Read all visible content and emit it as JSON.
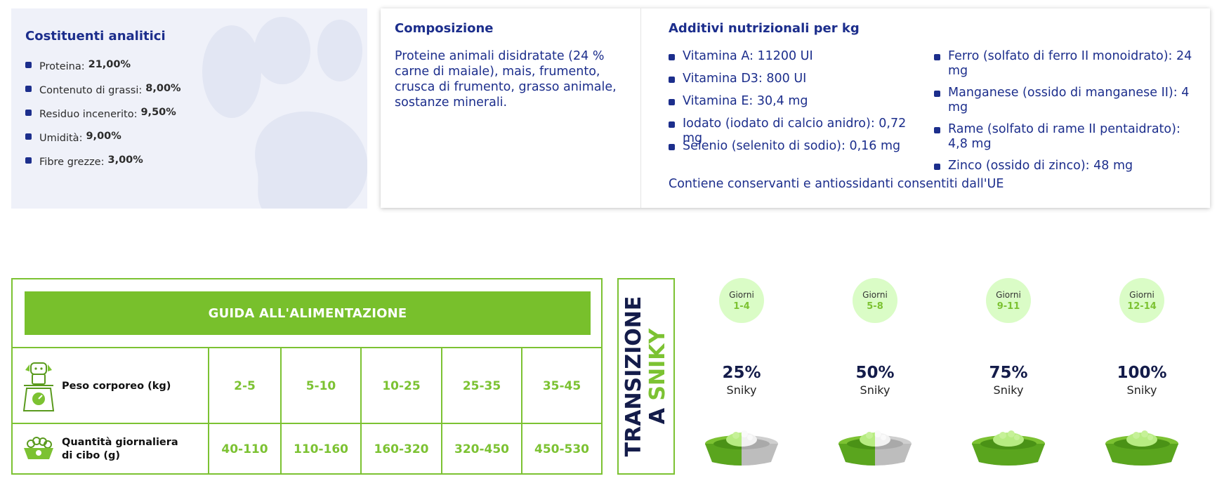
{
  "costituenti": {
    "title": "Costituenti analitici",
    "items": [
      {
        "label": "Proteina:",
        "value": "21,00%"
      },
      {
        "label": "Contenuto di grassi:",
        "value": "8,00%"
      },
      {
        "label": "Residuo incenerito:",
        "value": "9,50%"
      },
      {
        "label": "Umidità:",
        "value": "9,00%"
      },
      {
        "label": "Fibre grezze:",
        "value": "3,00%"
      }
    ]
  },
  "composizione": {
    "title": "Composizione",
    "text": "Proteine animali disidratate (24 % carne di maiale), mais, frumento, crusca di frumento, grasso animale, sostanze minerali."
  },
  "additivi": {
    "title": "Additivi nutrizionali per kg",
    "col1": [
      "Vitamina A: 11200 UI",
      "Vitamina D3: 800 UI",
      "Vitamina E: 30,4 mg",
      "Iodato (iodato di calcio anidro): 0,72 mg",
      "Selenio (selenito di sodio): 0,16 mg"
    ],
    "col2": [
      "Ferro (solfato di ferro II monoidrato): 24 mg",
      "Manganese (ossido di manganese II): 4 mg",
      "Rame (solfato di rame II pentaidrato): 4,8 mg",
      "Zinco (ossido di zinco): 48 mg"
    ],
    "note": "Contiene conservanti e antiossidanti consentiti dall'UE"
  },
  "guida": {
    "title": "GUIDA ALL'ALIMENTAZIONE",
    "peso_label": "Peso corporeo (kg)",
    "peso_values": [
      "2-5",
      "5-10",
      "10-25",
      "25-35",
      "35-45"
    ],
    "qta_label_1": "Quantità giornaliera",
    "qta_label_2": "di cibo (g)",
    "qta_values": [
      "40-110",
      "110-160",
      "160-320",
      "320-450",
      "450-530"
    ]
  },
  "transizione": {
    "line1": "TRANSIZIONE",
    "line2_a": "A",
    "line2_b": "SNIKY",
    "steps": [
      {
        "giorni": "Giorni",
        "days": "1-4",
        "pct": "25%",
        "brand": "Sniky",
        "fraction": 0.25
      },
      {
        "giorni": "Giorni",
        "days": "5-8",
        "pct": "50%",
        "brand": "Sniky",
        "fraction": 0.5
      },
      {
        "giorni": "Giorni",
        "days": "9-11",
        "pct": "75%",
        "brand": "Sniky",
        "fraction": 0.75
      },
      {
        "giorni": "Giorni",
        "days": "12-14",
        "pct": "100%",
        "brand": "Sniky",
        "fraction": 1.0
      }
    ]
  },
  "colors": {
    "navy": "#1c2e8c",
    "green": "#7cc232",
    "panel_bg": "#eff1f9",
    "circle_bg": "#dafcc6"
  }
}
